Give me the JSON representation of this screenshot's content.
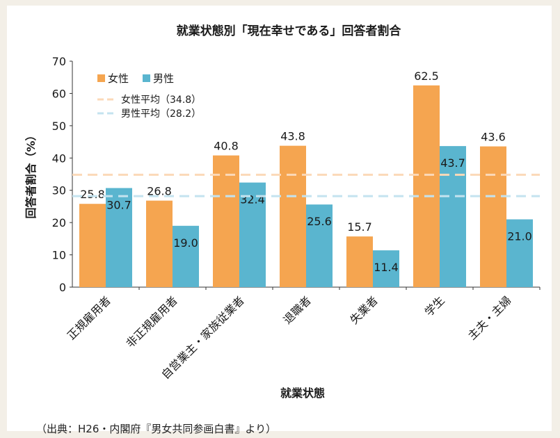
{
  "colors": {
    "female": "#f5a550",
    "male": "#5ab5cf",
    "female_avg": "#fbd9b8",
    "male_avg": "#c4e3ef",
    "text": "#1a1a1a",
    "axis": "#333333"
  },
  "source_note": "（出典：H26・内閣府『男女共同参画白書』より）",
  "chart_data": {
    "type": "bar",
    "title": "就業状態別「現在幸せである」回答者割合",
    "xlabel": "就業状態",
    "ylabel": "回答者割合（%）",
    "ylim": [
      0,
      70
    ],
    "yticks": [
      0,
      10,
      20,
      30,
      40,
      50,
      60,
      70
    ],
    "grid": false,
    "legend_position": "top-left",
    "categories": [
      "正規雇用者",
      "非正規雇用者",
      "自営業主・家族従業者",
      "退職者",
      "失業者",
      "学生",
      "主夫・主婦"
    ],
    "series": [
      {
        "name": "女性",
        "color_key": "female",
        "values": [
          25.8,
          26.8,
          40.8,
          43.8,
          15.7,
          62.5,
          43.6
        ]
      },
      {
        "name": "男性",
        "color_key": "male",
        "values": [
          30.7,
          19.0,
          32.4,
          25.6,
          11.4,
          43.7,
          21.0
        ]
      }
    ],
    "reference_lines": [
      {
        "label": "女性平均（34.8）",
        "value": 34.8,
        "color_key": "female_avg"
      },
      {
        "label": "男性平均（28.2）",
        "value": 28.2,
        "color_key": "male_avg"
      }
    ]
  }
}
